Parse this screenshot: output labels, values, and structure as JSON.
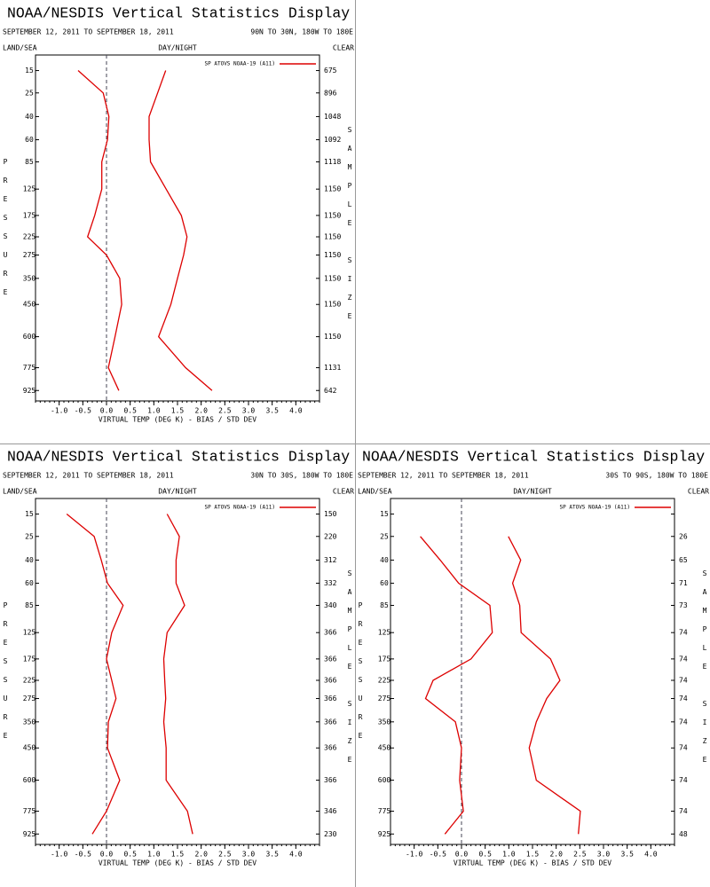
{
  "chart_data": [
    {
      "type": "line",
      "title": "NOAA/NESDIS Vertical Statistics Display",
      "subtitle": "SEPTEMBER 12, 2011 TO SEPTEMBER 18, 2011",
      "region": "90N TO 30N, 180W TO 180E",
      "left_label": "LAND/SEA",
      "center_label": "DAY/NIGHT",
      "right_label": "CLEAR",
      "ylabel": "PRESSURE",
      "y2label": "SAMPLE SIZE",
      "xlabel": "VIRTUAL TEMP (DEG K) - BIAS / STD DEV",
      "y": [
        15,
        25,
        40,
        60,
        85,
        125,
        175,
        225,
        275,
        350,
        450,
        600,
        775,
        925
      ],
      "sample_size": [
        675,
        896,
        1048,
        1092,
        1118,
        1150,
        1150,
        1150,
        1150,
        1150,
        1150,
        1150,
        1131,
        642
      ],
      "series": [
        {
          "name": "SP ATOVS NOAA-19 (A11)",
          "color": "#dd0000",
          "values": [
            -0.6,
            -0.07,
            0.05,
            0.02,
            -0.1,
            -0.1,
            -0.25,
            -0.4,
            0.0,
            0.28,
            0.32,
            0.18,
            0.04,
            0.26
          ]
        },
        {
          "color": "#dd0000",
          "values": [
            1.25,
            1.08,
            0.9,
            0.9,
            0.93,
            1.26,
            1.58,
            1.7,
            1.63,
            1.5,
            1.36,
            1.1,
            1.67,
            2.23
          ]
        }
      ],
      "xlim": [
        -1.5,
        4.5
      ],
      "xticks": [
        {
          "value": -1,
          "label": "-1.0"
        },
        {
          "value": -0.5,
          "label": "-0.5"
        },
        {
          "value": 0,
          "label": "0.0"
        },
        0.5,
        {
          "value": 1,
          "label": "1.0"
        },
        1.5,
        {
          "value": 2,
          "label": "2.0"
        },
        2.5,
        {
          "value": 3,
          "label": "3.0"
        },
        3.5,
        {
          "value": 4,
          "label": "4.0"
        }
      ],
      "ylim": [
        1000,
        10
      ],
      "yscale": "pressure"
    },
    {
      "type": "line",
      "title": "NOAA/NESDIS Vertical Statistics Display",
      "subtitle": "SEPTEMBER 12, 2011 TO SEPTEMBER 18, 2011",
      "region": "30N TO 30S, 180W TO 180E",
      "left_label": "LAND/SEA",
      "center_label": "DAY/NIGHT",
      "right_label": "CLEAR",
      "ylabel": "PRESSURE",
      "y2label": "SAMPLE SIZE",
      "xlabel": "VIRTUAL TEMP (DEG K) - BIAS / STD DEV",
      "y": [
        15,
        25,
        40,
        60,
        85,
        125,
        175,
        225,
        275,
        350,
        450,
        600,
        775,
        925
      ],
      "sample_size": [
        150,
        220,
        312,
        332,
        340,
        366,
        366,
        366,
        366,
        366,
        366,
        366,
        346,
        230
      ],
      "series": [
        {
          "name": "SP ATOVS NOAA-19 (A11)",
          "color": "#dd0000",
          "values": [
            -0.84,
            -0.26,
            -0.11,
            0.02,
            0.35,
            0.11,
            0.0,
            0.11,
            0.2,
            0.04,
            0.02,
            0.28,
            0.0,
            -0.3
          ]
        },
        {
          "color": "#dd0000",
          "values": [
            1.28,
            1.54,
            1.47,
            1.47,
            1.65,
            1.28,
            1.21,
            1.23,
            1.25,
            1.21,
            1.26,
            1.26,
            1.71,
            1.82
          ]
        }
      ],
      "xlim": [
        -1.5,
        4.5
      ],
      "xticks": [
        {
          "value": -1,
          "label": "-1.0"
        },
        {
          "value": -0.5,
          "label": "-0.5"
        },
        {
          "value": 0,
          "label": "0.0"
        },
        0.5,
        {
          "value": 1,
          "label": "1.0"
        },
        1.5,
        {
          "value": 2,
          "label": "2.0"
        },
        2.5,
        {
          "value": 3,
          "label": "3.0"
        },
        3.5,
        {
          "value": 4,
          "label": "4.0"
        }
      ],
      "ylim": [
        1000,
        10
      ],
      "yscale": "pressure"
    },
    {
      "type": "line",
      "title": "NOAA/NESDIS Vertical Statistics Display",
      "subtitle": "SEPTEMBER 12, 2011 TO SEPTEMBER 18, 2011",
      "region": "30S TO 90S, 180W TO 180E",
      "left_label": "LAND/SEA",
      "center_label": "DAY/NIGHT",
      "right_label": "CLEAR",
      "ylabel": "PRESSURE",
      "y2label": "SAMPLE SIZE",
      "xlabel": "VIRTUAL TEMP (DEG K) - BIAS / STD DEV",
      "y": [
        15,
        25,
        40,
        60,
        85,
        125,
        175,
        225,
        275,
        350,
        450,
        600,
        775,
        925
      ],
      "sample_size": [
        null,
        26,
        65,
        71,
        73,
        74,
        74,
        74,
        74,
        74,
        74,
        74,
        74,
        48
      ],
      "series": [
        {
          "name": "SP ATOVS NOAA-19 (A11)",
          "color": "#dd0000",
          "values": [
            null,
            -0.87,
            -0.45,
            -0.06,
            0.6,
            0.65,
            0.2,
            -0.6,
            -0.76,
            -0.13,
            0.0,
            -0.04,
            0.04,
            -0.35
          ]
        },
        {
          "color": "#dd0000",
          "values": [
            null,
            0.99,
            1.25,
            1.08,
            1.23,
            1.26,
            1.88,
            2.08,
            1.8,
            1.58,
            1.43,
            1.58,
            2.51,
            2.47
          ]
        }
      ],
      "xlim": [
        -1.5,
        4.5
      ],
      "xticks": [
        {
          "value": -1,
          "label": "-1.0"
        },
        {
          "value": -0.5,
          "label": "-0.5"
        },
        {
          "value": 0,
          "label": "0.0"
        },
        0.5,
        {
          "value": 1,
          "label": "1.0"
        },
        1.5,
        {
          "value": 2,
          "label": "2.0"
        },
        2.5,
        {
          "value": 3,
          "label": "3.0"
        },
        3.5,
        {
          "value": 4,
          "label": "4.0"
        }
      ],
      "ylim": [
        1000,
        10
      ],
      "yscale": "pressure"
    }
  ]
}
